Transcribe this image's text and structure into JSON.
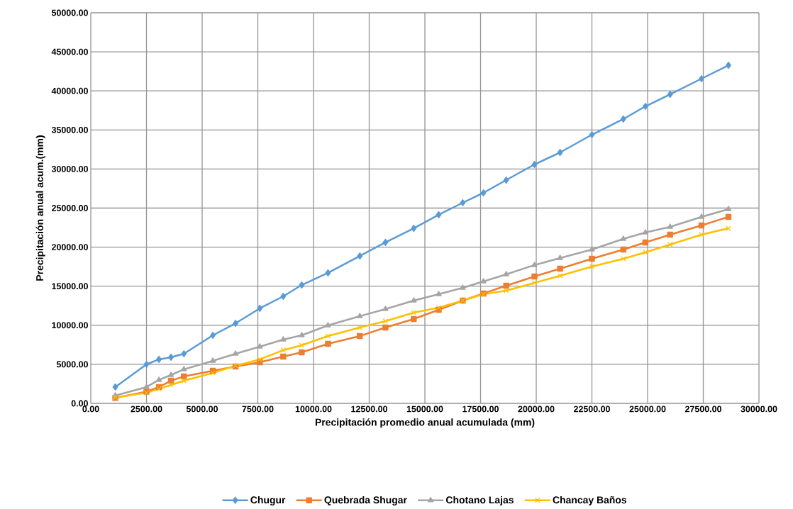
{
  "chart_data": {
    "type": "line",
    "xlabel": "Precipitación promedio anual acumulada (mm)",
    "ylabel": "Precipitación anual acum.(mm)",
    "x": [
      1100,
      2500,
      3060,
      3600,
      4180,
      5480,
      6500,
      7590,
      8640,
      9470,
      10650,
      12080,
      13230,
      14500,
      15620,
      16700,
      17630,
      18650,
      19920,
      21070,
      22500,
      23910,
      24900,
      26010,
      27420,
      28630
    ],
    "series": [
      {
        "name": "Chugur",
        "color": "#5b9bd5",
        "marker": "diamond",
        "values": [
          2090,
          4990,
          5630,
          5900,
          6350,
          8710,
          10250,
          12160,
          13700,
          15150,
          16700,
          18870,
          20600,
          22410,
          24140,
          25680,
          26950,
          28580,
          30580,
          32120,
          34390,
          36390,
          38020,
          39560,
          41560,
          43280
        ]
      },
      {
        "name": "Quebrada Shugar",
        "color": "#ed7d31",
        "marker": "square",
        "values": [
          700,
          1500,
          2100,
          2900,
          3450,
          4170,
          4720,
          5260,
          5990,
          6530,
          7620,
          8620,
          9710,
          10800,
          11980,
          13160,
          14070,
          15060,
          16240,
          17240,
          18510,
          19690,
          20600,
          21600,
          22780,
          23870
        ]
      },
      {
        "name": "Chotano Lajas",
        "color": "#a5a5a5",
        "marker": "triangle",
        "values": [
          1000,
          2090,
          3000,
          3630,
          4360,
          5440,
          6350,
          7260,
          8170,
          8710,
          9980,
          11160,
          12070,
          13160,
          13970,
          14790,
          15610,
          16520,
          17700,
          18600,
          19690,
          21050,
          21870,
          22600,
          23870,
          24860
        ]
      },
      {
        "name": "Chancay Baños",
        "color": "#ffc000",
        "marker": "cross",
        "values": [
          750,
          1350,
          1850,
          2360,
          2900,
          3900,
          4810,
          5630,
          6810,
          7440,
          8620,
          9710,
          10530,
          11620,
          12250,
          13160,
          13970,
          14430,
          15430,
          16330,
          17510,
          18510,
          19330,
          20330,
          21600,
          22410
        ]
      }
    ],
    "xlim": [
      0,
      30000
    ],
    "xticks": [
      {
        "value": 0,
        "label": "0.00"
      },
      {
        "value": 2500,
        "label": "2500.00"
      },
      {
        "value": 5000,
        "label": "5000.00"
      },
      {
        "value": 7500,
        "label": "7500.00"
      },
      {
        "value": 10000,
        "label": "10000.00"
      },
      {
        "value": 12500,
        "label": "12500.00"
      },
      {
        "value": 15000,
        "label": "15000.00"
      },
      {
        "value": 17500,
        "label": "17500.00"
      },
      {
        "value": 20000,
        "label": "20000.00"
      },
      {
        "value": 22500,
        "label": "22500.00"
      },
      {
        "value": 25000,
        "label": "25000.00"
      },
      {
        "value": 27500,
        "label": "27500.00"
      },
      {
        "value": 30000,
        "label": "30000.00"
      }
    ],
    "ylim": [
      0,
      50000
    ],
    "yticks": [
      {
        "value": 0,
        "label": "0.00"
      },
      {
        "value": 5000,
        "label": "5000.00"
      },
      {
        "value": 10000,
        "label": "10000.00"
      },
      {
        "value": 15000,
        "label": "15000.00"
      },
      {
        "value": 20000,
        "label": "20000.00"
      },
      {
        "value": 25000,
        "label": "25000.00"
      },
      {
        "value": 30000,
        "label": "30000.00"
      },
      {
        "value": 35000,
        "label": "35000.00"
      },
      {
        "value": 40000,
        "label": "40000.00"
      },
      {
        "value": 45000,
        "label": "45000.00"
      },
      {
        "value": 50000,
        "label": "50000.00"
      }
    ],
    "grid": true,
    "legend": "bottom"
  }
}
